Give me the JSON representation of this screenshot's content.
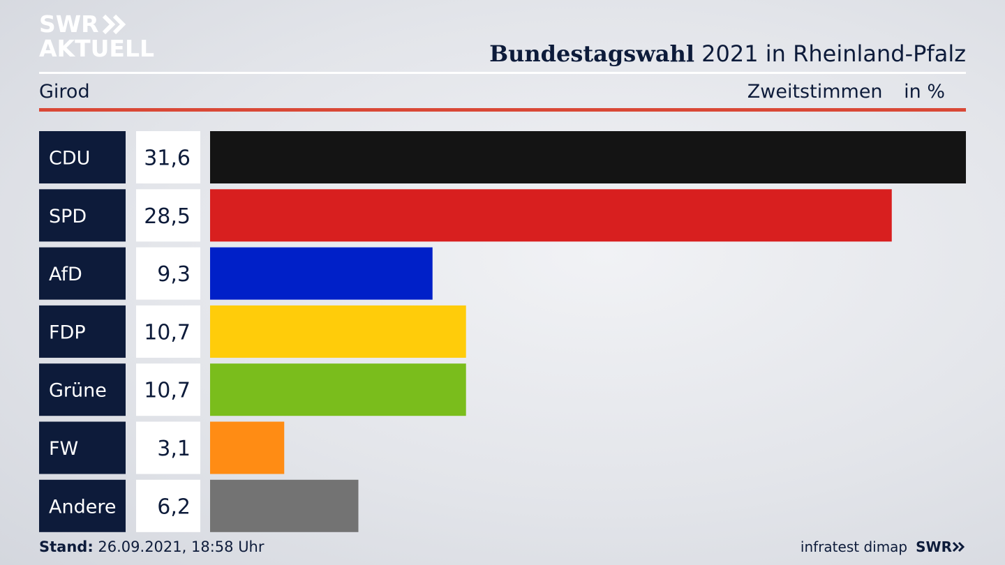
{
  "logo": {
    "line1": "SWR",
    "line2": "AKTUELL"
  },
  "header": {
    "title_bold": "Bundestagswahl",
    "title_rest": "2021 in Rheinland-Pfalz",
    "subtitle": "Girod",
    "measure": "Zweitstimmen",
    "unit": "in %"
  },
  "chart_data": {
    "type": "bar",
    "orientation": "horizontal",
    "categories": [
      "CDU",
      "SPD",
      "AfD",
      "FDP",
      "Grüne",
      "FW",
      "Andere"
    ],
    "values": [
      31.6,
      28.5,
      9.3,
      10.7,
      10.7,
      3.1,
      6.2
    ],
    "value_labels": [
      "31,6",
      "28,5",
      "9,3",
      "10,7",
      "10,7",
      "3,1",
      "6,2"
    ],
    "colors": [
      "#141414",
      "#d81f1f",
      "#0020c8",
      "#ffcc0a",
      "#7abd1c",
      "#ff8c14",
      "#737373"
    ],
    "xlim": [
      0,
      31.6
    ],
    "grid": false,
    "legend": "none"
  },
  "footer": {
    "stand_label": "Stand:",
    "stand_value": "26.09.2021, 18:58 Uhr",
    "source": "infratest dimap",
    "brand": "SWR"
  },
  "theme": {
    "label_bg": "#0d1b3a",
    "accent_red": "#d94836"
  }
}
